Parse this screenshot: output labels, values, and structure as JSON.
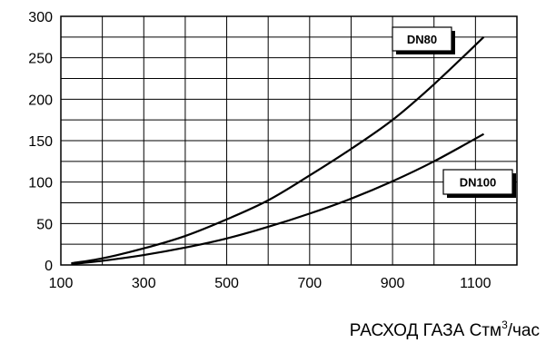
{
  "chart_data": {
    "type": "line",
    "title": "",
    "xlabel": "РАСХОД ГАЗА Стм",
    "xlabel_sup": "3",
    "xlabel_suffix": "/час",
    "ylabel": "",
    "xlim": [
      100,
      1200
    ],
    "ylim": [
      0,
      300
    ],
    "x_ticks": [
      100,
      300,
      500,
      700,
      900,
      1100
    ],
    "y_ticks": [
      0,
      50,
      100,
      150,
      200,
      250,
      300
    ],
    "x_grid_step": 100,
    "y_grid_step": 25,
    "grid": true,
    "series": [
      {
        "name": "DN80",
        "x": [
          125,
          200,
          300,
          400,
          500,
          600,
          700,
          800,
          900,
          1000,
          1120
        ],
        "values": [
          2,
          8,
          20,
          35,
          55,
          78,
          108,
          140,
          175,
          218,
          275
        ]
      },
      {
        "name": "DN100",
        "x": [
          125,
          200,
          300,
          400,
          500,
          600,
          700,
          800,
          900,
          1000,
          1120
        ],
        "values": [
          1,
          5,
          12,
          21,
          32,
          46,
          62,
          80,
          101,
          125,
          158
        ]
      }
    ],
    "colors": {
      "line": "#000000",
      "grid": "#000000",
      "background": "#ffffff"
    }
  }
}
